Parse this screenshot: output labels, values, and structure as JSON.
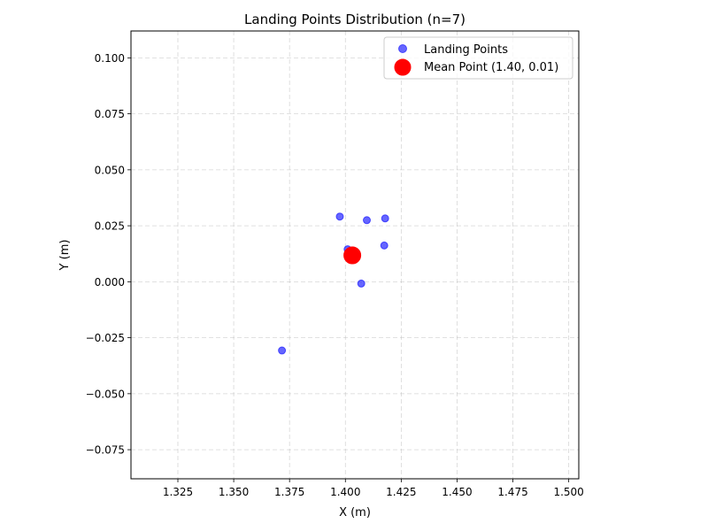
{
  "chart_data": {
    "type": "scatter",
    "title": "Landing Points Distribution (n=7)",
    "xlabel": "X (m)",
    "ylabel": "Y (m)",
    "xlim": [
      1.304,
      1.5045
    ],
    "ylim": [
      -0.088,
      0.112
    ],
    "x_ticks": [
      {
        "value": 1.325,
        "label": "1.325"
      },
      {
        "value": 1.35,
        "label": "1.350"
      },
      {
        "value": 1.375,
        "label": "1.375"
      },
      {
        "value": 1.4,
        "label": "1.400"
      },
      {
        "value": 1.425,
        "label": "1.425"
      },
      {
        "value": 1.45,
        "label": "1.450"
      },
      {
        "value": 1.475,
        "label": "1.475"
      },
      {
        "value": 1.5,
        "label": "1.500"
      }
    ],
    "y_ticks": [
      {
        "value": 0.1,
        "label": "0.100"
      },
      {
        "value": 0.075,
        "label": "0.075"
      },
      {
        "value": 0.05,
        "label": "0.050"
      },
      {
        "value": 0.025,
        "label": "0.025"
      },
      {
        "value": 0.0,
        "label": "0.000"
      },
      {
        "value": -0.025,
        "label": "−0.025"
      },
      {
        "value": -0.05,
        "label": "−0.050"
      },
      {
        "value": -0.075,
        "label": "−0.075"
      }
    ],
    "grid": true,
    "legend_position": "top-right",
    "series": [
      {
        "name": "Landing Points",
        "color": "#0000ff",
        "marker": "circle",
        "points": [
          {
            "x": 1.3716,
            "y": -0.0307
          },
          {
            "x": 1.3975,
            "y": 0.0291
          },
          {
            "x": 1.401,
            "y": 0.0145
          },
          {
            "x": 1.4071,
            "y": -0.0008
          },
          {
            "x": 1.4096,
            "y": 0.0275
          },
          {
            "x": 1.4174,
            "y": 0.0162
          },
          {
            "x": 1.4178,
            "y": 0.0283
          }
        ]
      },
      {
        "name": "Mean Point (1.40, 0.01)",
        "color": "#ff0000",
        "marker": "circle-large",
        "points": [
          {
            "x": 1.4031,
            "y": 0.0118
          }
        ]
      }
    ]
  }
}
